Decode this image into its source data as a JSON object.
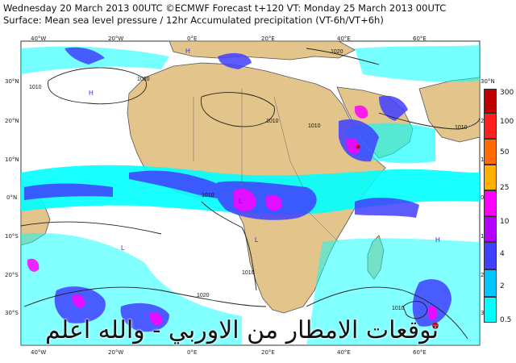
{
  "header": {
    "line1": "Wednesday 20 March 2013 00UTC ©ECMWF Forecast t+120 VT: Monday 25 March 2013 00UTC",
    "line2": "Surface: Mean sea level pressure / 12hr Accumulated precipitation (VT-6h/VT+6h)"
  },
  "map": {
    "lon_labels_top": [
      "40°W",
      "20°W",
      "0°E",
      "20°E",
      "40°E",
      "60°E"
    ],
    "lon_labels_bottom": [
      "40°W",
      "20°W",
      "0°E",
      "20°E",
      "40°E",
      "60°E"
    ],
    "lat_labels_left": [
      "30°N",
      "20°N",
      "10°N",
      "0°N",
      "10°S",
      "20°S",
      "30°S"
    ],
    "lat_labels_right": [
      "30°N",
      "20°N",
      "10°N",
      "0°N",
      "10°S",
      "20°S",
      "30°S"
    ],
    "isobar_labels": [
      "1010",
      "1020",
      "1020",
      "1010",
      "1010",
      "1010",
      "1020",
      "1010",
      "1010",
      "1010"
    ],
    "pressure_centres": [
      "H",
      "H",
      "L",
      "L",
      "H",
      "L"
    ]
  },
  "legend": {
    "levels": [
      "300",
      "100",
      "50",
      "25",
      "10",
      "4",
      "2",
      "0.5"
    ],
    "colors": [
      "#c00000",
      "#ff2020",
      "#ff6a00",
      "#ffb000",
      "#ff00ff",
      "#b400ff",
      "#4040ff",
      "#00c8ff",
      "#00ffff"
    ]
  },
  "caption": "توقعات الامطار من الاوربي - والله اعلم"
}
